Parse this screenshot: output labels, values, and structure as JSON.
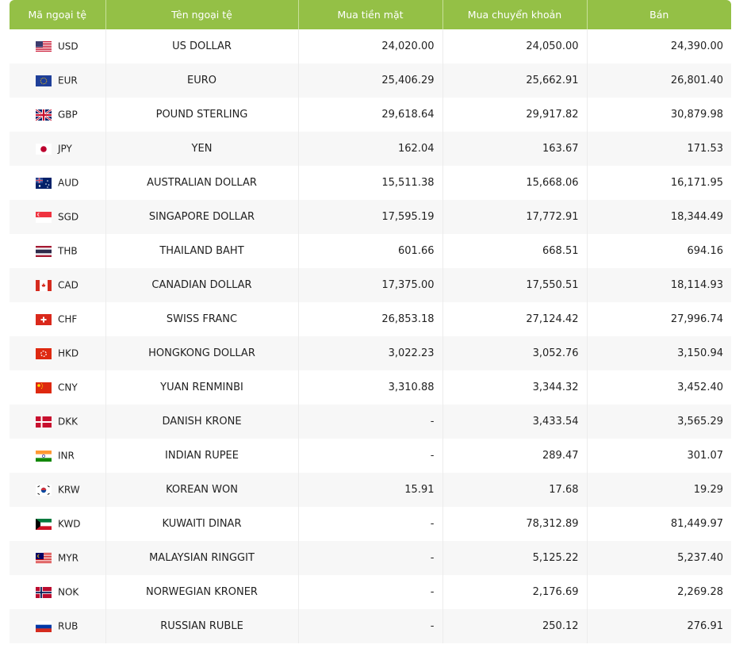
{
  "table": {
    "header": [
      "Mã ngoại tệ",
      "Tên ngoại tệ",
      "Mua tiền mặt",
      "Mua chuyển khoản",
      "Bán"
    ],
    "rows": [
      [
        "USD",
        "US DOLLAR",
        "24,020.00",
        "24,050.00",
        "24,390.00"
      ],
      [
        "EUR",
        "EURO",
        "25,406.29",
        "25,662.91",
        "26,801.40"
      ],
      [
        "GBP",
        "POUND STERLING",
        "29,618.64",
        "29,917.82",
        "30,879.98"
      ],
      [
        "JPY",
        "YEN",
        "162.04",
        "163.67",
        "171.53"
      ],
      [
        "AUD",
        "AUSTRALIAN DOLLAR",
        "15,511.38",
        "15,668.06",
        "16,171.95"
      ],
      [
        "SGD",
        "SINGAPORE DOLLAR",
        "17,595.19",
        "17,772.91",
        "18,344.49"
      ],
      [
        "THB",
        "THAILAND BAHT",
        "601.66",
        "668.51",
        "694.16"
      ],
      [
        "CAD",
        "CANADIAN DOLLAR",
        "17,375.00",
        "17,550.51",
        "18,114.93"
      ],
      [
        "CHF",
        "SWISS FRANC",
        "26,853.18",
        "27,124.42",
        "27,996.74"
      ],
      [
        "HKD",
        "HONGKONG DOLLAR",
        "3,022.23",
        "3,052.76",
        "3,150.94"
      ],
      [
        "CNY",
        "YUAN RENMINBI",
        "3,310.88",
        "3,344.32",
        "3,452.40"
      ],
      [
        "DKK",
        "DANISH KRONE",
        "-",
        "3,433.54",
        "3,565.29"
      ],
      [
        "INR",
        "INDIAN RUPEE",
        "-",
        "289.47",
        "301.07"
      ],
      [
        "KRW",
        "KOREAN WON",
        "15.91",
        "17.68",
        "19.29"
      ],
      [
        "KWD",
        "KUWAITI DINAR",
        "-",
        "78,312.89",
        "81,449.97"
      ],
      [
        "MYR",
        "MALAYSIAN RINGGIT",
        "-",
        "5,125.22",
        "5,237.40"
      ],
      [
        "NOK",
        "NORWEGIAN KRONER",
        "-",
        "2,176.69",
        "2,269.28"
      ],
      [
        "RUB",
        "RUSSIAN RUBLE",
        "-",
        "250.12",
        "276.91"
      ]
    ]
  }
}
